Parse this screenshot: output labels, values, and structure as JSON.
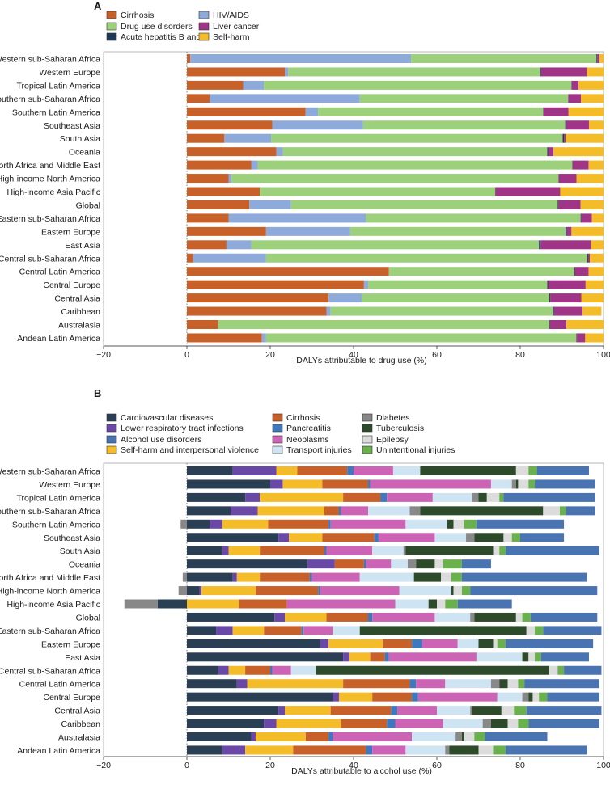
{
  "chart_data": [
    {
      "panel_label": "A",
      "type": "bar",
      "stacked": true,
      "orientation": "horizontal",
      "xlabel": "DALYs attributable to drug use (%)",
      "xlim": [
        -20,
        100
      ],
      "xticks": [
        -20,
        0,
        20,
        40,
        60,
        80,
        100
      ],
      "legend_placement": "top-left",
      "categories": [
        "Western sub-Saharan Africa",
        "Western Europe",
        "Tropical Latin America",
        "Southern sub-Saharan Africa",
        "Southern Latin America",
        "Southeast Asia",
        "South Asia",
        "Oceania",
        "North Africa and Middle East",
        "High-income North America",
        "High-income Asia Pacific",
        "Global",
        "Eastern sub-Saharan Africa",
        "Eastern Europe",
        "East Asia",
        "Central sub-Saharan Africa",
        "Central Latin America",
        "Central Europe",
        "Central Asia",
        "Caribbean",
        "Australasia",
        "Andean Latin America"
      ],
      "series": [
        {
          "name": "Cirrhosis",
          "color": "#c8602a",
          "values": [
            0.8,
            23.5,
            13.5,
            5.5,
            28.5,
            20.5,
            9.0,
            21.5,
            15.5,
            10.0,
            17.5,
            15.0,
            10.0,
            19.0,
            9.5,
            1.5,
            48.5,
            42.5,
            34.0,
            33.5,
            7.5,
            18.0
          ]
        },
        {
          "name": "HIV/AIDS",
          "color": "#8eaadb",
          "values": [
            53.0,
            0.8,
            5.0,
            36.0,
            3.0,
            21.8,
            11.2,
            1.5,
            1.5,
            0.7,
            0.0,
            10.0,
            33.0,
            20.2,
            6.0,
            17.5,
            0.0,
            1.0,
            8.0,
            1.0,
            0.0,
            1.0
          ]
        },
        {
          "name": "Drug use disorders",
          "color": "#9dd07a",
          "values": [
            44.5,
            60.5,
            73.8,
            50.0,
            54.0,
            48.5,
            70.0,
            63.5,
            75.5,
            78.5,
            56.5,
            64.0,
            51.5,
            51.7,
            69.0,
            77.0,
            44.5,
            43.0,
            45.0,
            53.3,
            79.5,
            74.5
          ]
        },
        {
          "name": "Acute hepatitis B and C",
          "color": "#1f3a56",
          "values": [
            0.2,
            0.2,
            0.1,
            0.1,
            0.1,
            0.2,
            0.3,
            0.2,
            0.1,
            0.1,
            0.1,
            0.2,
            0.2,
            0.3,
            0.4,
            0.3,
            0.1,
            0.2,
            0.2,
            0.3,
            0.1,
            0.1
          ]
        },
        {
          "name": "Liver cancer",
          "color": "#a03487",
          "values": [
            0.5,
            11.0,
            1.6,
            3.0,
            6.0,
            5.5,
            0.4,
            1.3,
            3.8,
            4.2,
            15.5,
            5.3,
            2.5,
            1.1,
            12.1,
            0.4,
            3.3,
            9.0,
            7.5,
            6.9,
            4.0,
            2.0
          ]
        },
        {
          "name": "Self-harm",
          "color": "#f5bc2a",
          "values": [
            1.0,
            4.0,
            6.0,
            5.4,
            8.4,
            3.5,
            9.1,
            12.0,
            3.6,
            6.5,
            10.4,
            5.5,
            2.8,
            7.7,
            3.0,
            3.3,
            3.6,
            4.3,
            5.3,
            4.5,
            8.9,
            4.4
          ]
        }
      ]
    },
    {
      "panel_label": "B",
      "type": "bar",
      "stacked": true,
      "orientation": "horizontal",
      "xlabel": "DALYs attributable to alcohol use (%)",
      "xlim": [
        -20,
        100
      ],
      "xticks": [
        -20,
        0,
        20,
        40,
        60,
        80,
        100
      ],
      "legend_placement": "top-left",
      "categories": [
        "Western sub-Saharan Africa",
        "Western Europe",
        "Tropical Latin America",
        "Southern sub-Saharan Africa",
        "Southern Latin America",
        "Southeast Asia",
        "South Asia",
        "Oceania",
        "North Africa and Middle East",
        "High-income North America",
        "High-income Asia Pacific",
        "Global",
        "Eastern sub-Saharan Africa",
        "Eastern Europe",
        "East Asia",
        "Central sub-Saharan Africa",
        "Central Latin America",
        "Central Europe",
        "Central Asia",
        "Caribbean",
        "Australasia",
        "Andean Latin America"
      ],
      "series": [
        {
          "name": "Cardiovascular diseases",
          "color": "#2a3e54",
          "values": [
            11,
            20,
            14,
            10.5,
            5.5,
            22,
            8.5,
            29,
            11,
            3,
            -7,
            21,
            7,
            32,
            37.5,
            7.5,
            12,
            35,
            22,
            18.5,
            15.5,
            8.5
          ]
        },
        {
          "name": "Lower respiratory tract infections",
          "color": "#6a48a8",
          "values": [
            10.5,
            3,
            3.5,
            6.5,
            3,
            2.5,
            1.5,
            6.5,
            1,
            0.5,
            0,
            2.5,
            4,
            2,
            1.5,
            2.5,
            2.5,
            1.5,
            1.5,
            3,
            1,
            5.5
          ]
        },
        {
          "name": "Self-harm and interpersonal violence",
          "color": "#f5bc2a",
          "values": [
            5,
            9.5,
            20,
            16,
            11,
            8,
            7.5,
            0,
            5.5,
            13,
            12.5,
            10,
            7.5,
            13,
            5,
            4,
            23,
            8,
            11,
            15.5,
            12,
            11.5
          ]
        },
        {
          "name": "Cirrhosis",
          "color": "#c8602a",
          "values": [
            12,
            11,
            9,
            3.5,
            14.5,
            12.5,
            15.5,
            7,
            12,
            15,
            11.5,
            10,
            9,
            7,
            3.5,
            6,
            16,
            9.5,
            14.5,
            11,
            5.5,
            17.5
          ]
        },
        {
          "name": "Pancreatitis",
          "color": "#3e79bf",
          "values": [
            1.5,
            0.5,
            1.5,
            0.5,
            0.5,
            1,
            0.5,
            0.5,
            0.5,
            0.5,
            0,
            1,
            0.5,
            2.5,
            1,
            0.5,
            1.5,
            1.5,
            1.5,
            2,
            1,
            1.5
          ]
        },
        {
          "name": "Neoplasms",
          "color": "#cc63b4",
          "values": [
            9.5,
            29,
            11,
            6.5,
            18,
            13.5,
            11,
            6,
            11.5,
            19,
            26,
            15,
            7,
            8.5,
            21,
            4.5,
            7,
            19,
            9.5,
            11.5,
            19,
            8
          ]
        },
        {
          "name": "Transport injuries",
          "color": "#cfe4f3",
          "values": [
            6.5,
            5,
            9.5,
            10,
            10,
            7.5,
            7.5,
            4,
            13,
            12.5,
            8,
            8.5,
            6.5,
            5,
            11,
            6,
            11,
            6,
            8,
            9.5,
            10.5,
            9.5
          ]
        },
        {
          "name": "Diabetes",
          "color": "#888888",
          "values": [
            0,
            1,
            1.5,
            2.5,
            -1.5,
            2,
            0.5,
            2,
            -1,
            -2,
            -8,
            1,
            0,
            0,
            0,
            0,
            2,
            1.5,
            0.5,
            2,
            1.5,
            1
          ]
        },
        {
          "name": "Tuberculosis",
          "color": "#2d4a2a",
          "values": [
            23,
            0.5,
            2,
            29.5,
            1.5,
            7,
            21,
            4.5,
            6.5,
            0.5,
            2,
            10,
            40,
            3.5,
            1.5,
            56,
            2,
            1,
            7,
            4,
            0.5,
            7
          ]
        },
        {
          "name": "Epilepsy",
          "color": "#dcdcdc",
          "values": [
            3,
            2.5,
            3,
            4,
            2.5,
            2,
            1.5,
            2,
            2.5,
            2,
            2,
            1.5,
            2,
            1,
            1.5,
            2,
            2.5,
            1.5,
            3,
            2.5,
            2.5,
            3.5
          ]
        },
        {
          "name": "Unintentional injuries",
          "color": "#6ab04c",
          "values": [
            2,
            1.5,
            1,
            1.5,
            3,
            2,
            1.5,
            4.5,
            2.5,
            2,
            3,
            2,
            2,
            2,
            1.5,
            1.5,
            1.5,
            2,
            3,
            2.5,
            2.5,
            3
          ]
        },
        {
          "name": "Alcohol use disorders",
          "color": "#4a73b2",
          "values": [
            12.5,
            14.5,
            22,
            7,
            21,
            10.5,
            22.5,
            7,
            30,
            30.5,
            13,
            16,
            14,
            21,
            11.5,
            9,
            18,
            12.5,
            18,
            17,
            15,
            19.5
          ]
        }
      ]
    }
  ]
}
